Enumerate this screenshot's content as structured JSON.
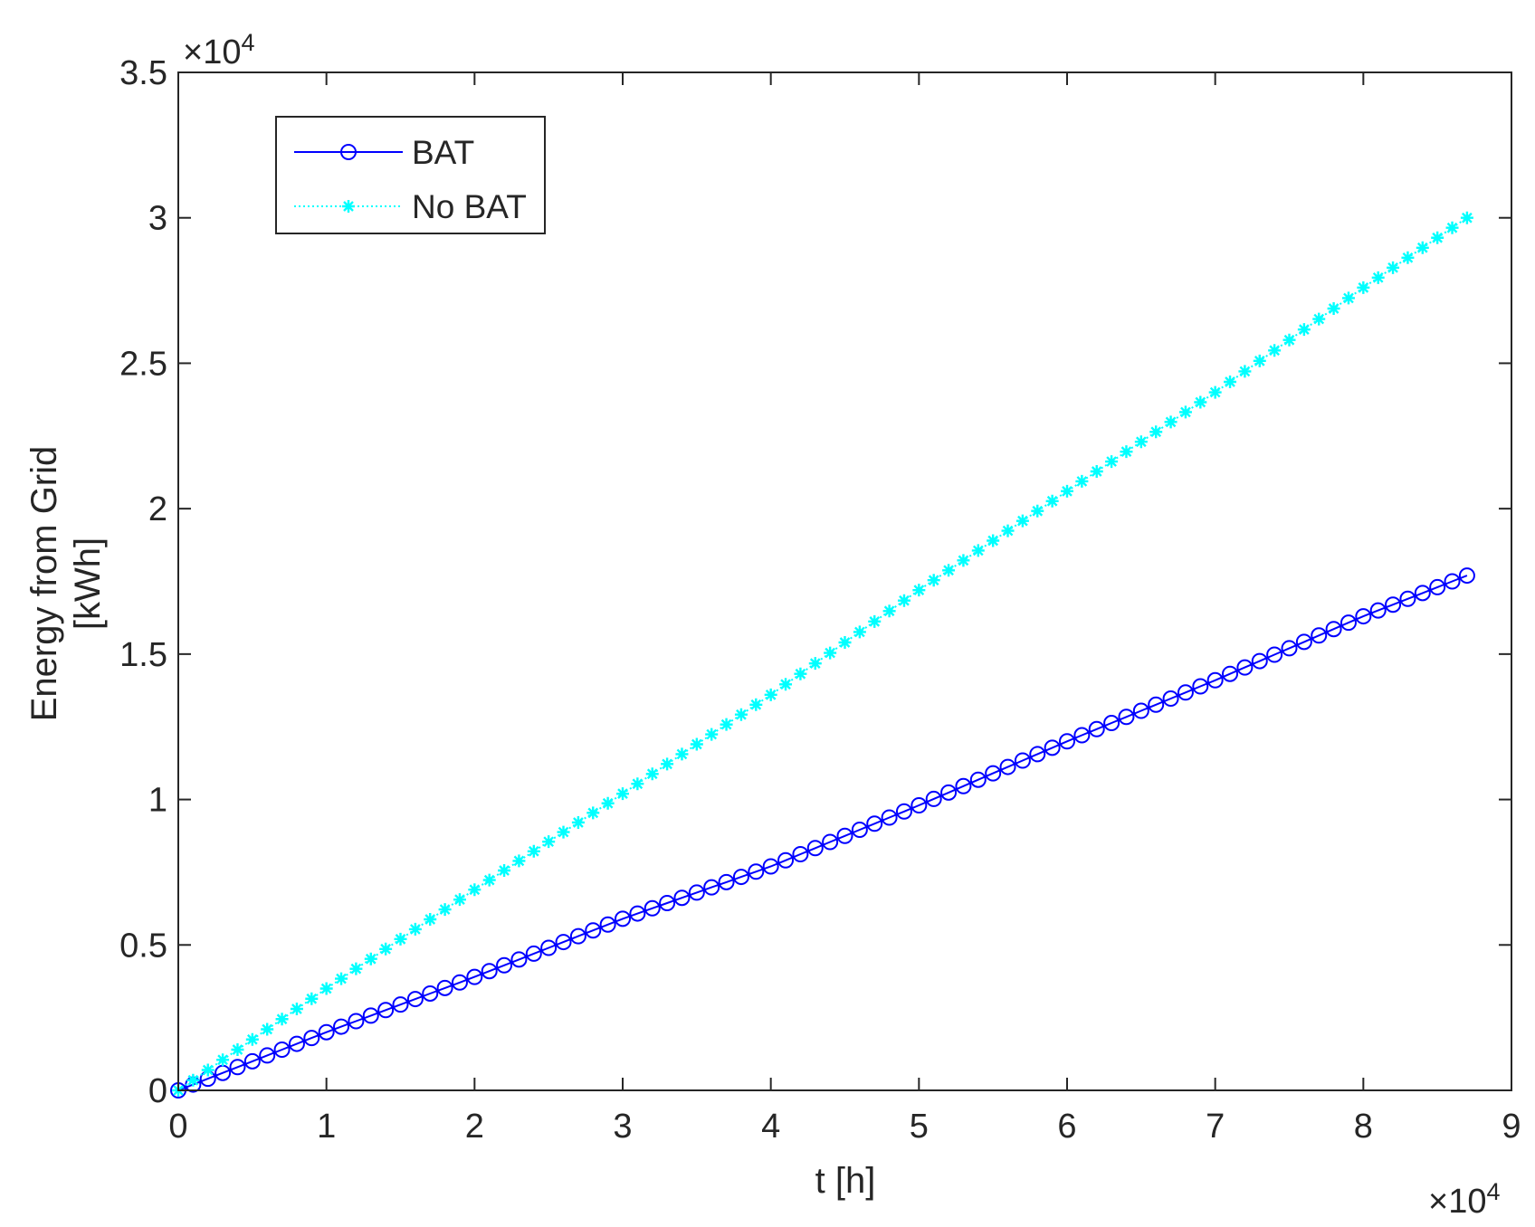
{
  "chart_data": {
    "type": "line",
    "xlabel": "t [h]",
    "ylabel_lines": [
      "Energy from Grid",
      "[kWh]"
    ],
    "x_multiplier": {
      "base": "×10",
      "exp": "4"
    },
    "y_multiplier": {
      "base": "×10",
      "exp": "4"
    },
    "xlim": [
      0,
      90000
    ],
    "ylim": [
      0,
      35000
    ],
    "x_ticks": [
      0,
      10000,
      20000,
      30000,
      40000,
      50000,
      60000,
      70000,
      80000,
      90000
    ],
    "x_tick_labels": [
      "0",
      "1",
      "2",
      "3",
      "4",
      "5",
      "6",
      "7",
      "8",
      "9"
    ],
    "y_ticks": [
      0,
      5000,
      10000,
      15000,
      20000,
      25000,
      30000,
      35000
    ],
    "y_tick_labels": [
      "0",
      "0.5",
      "1",
      "1.5",
      "2",
      "2.5",
      "3",
      "3.5"
    ],
    "grid": false,
    "legend_position": "top-left",
    "series": [
      {
        "name": "BAT",
        "color": "#0000ff",
        "line_style": "solid",
        "marker": "circle",
        "x": [
          0,
          10000,
          20000,
          30000,
          40000,
          50000,
          60000,
          70000,
          80000,
          87000
        ],
        "y": [
          0,
          2000,
          3900,
          5900,
          7700,
          9800,
          12000,
          14100,
          16300,
          17700
        ]
      },
      {
        "name": "No BAT",
        "color": "#00ffff",
        "line_style": "dotted",
        "marker": "asterisk",
        "x": [
          0,
          10000,
          20000,
          30000,
          40000,
          50000,
          60000,
          70000,
          80000,
          87000
        ],
        "y": [
          0,
          3500,
          6900,
          10200,
          13600,
          17200,
          20600,
          24000,
          27600,
          30000
        ]
      }
    ]
  }
}
